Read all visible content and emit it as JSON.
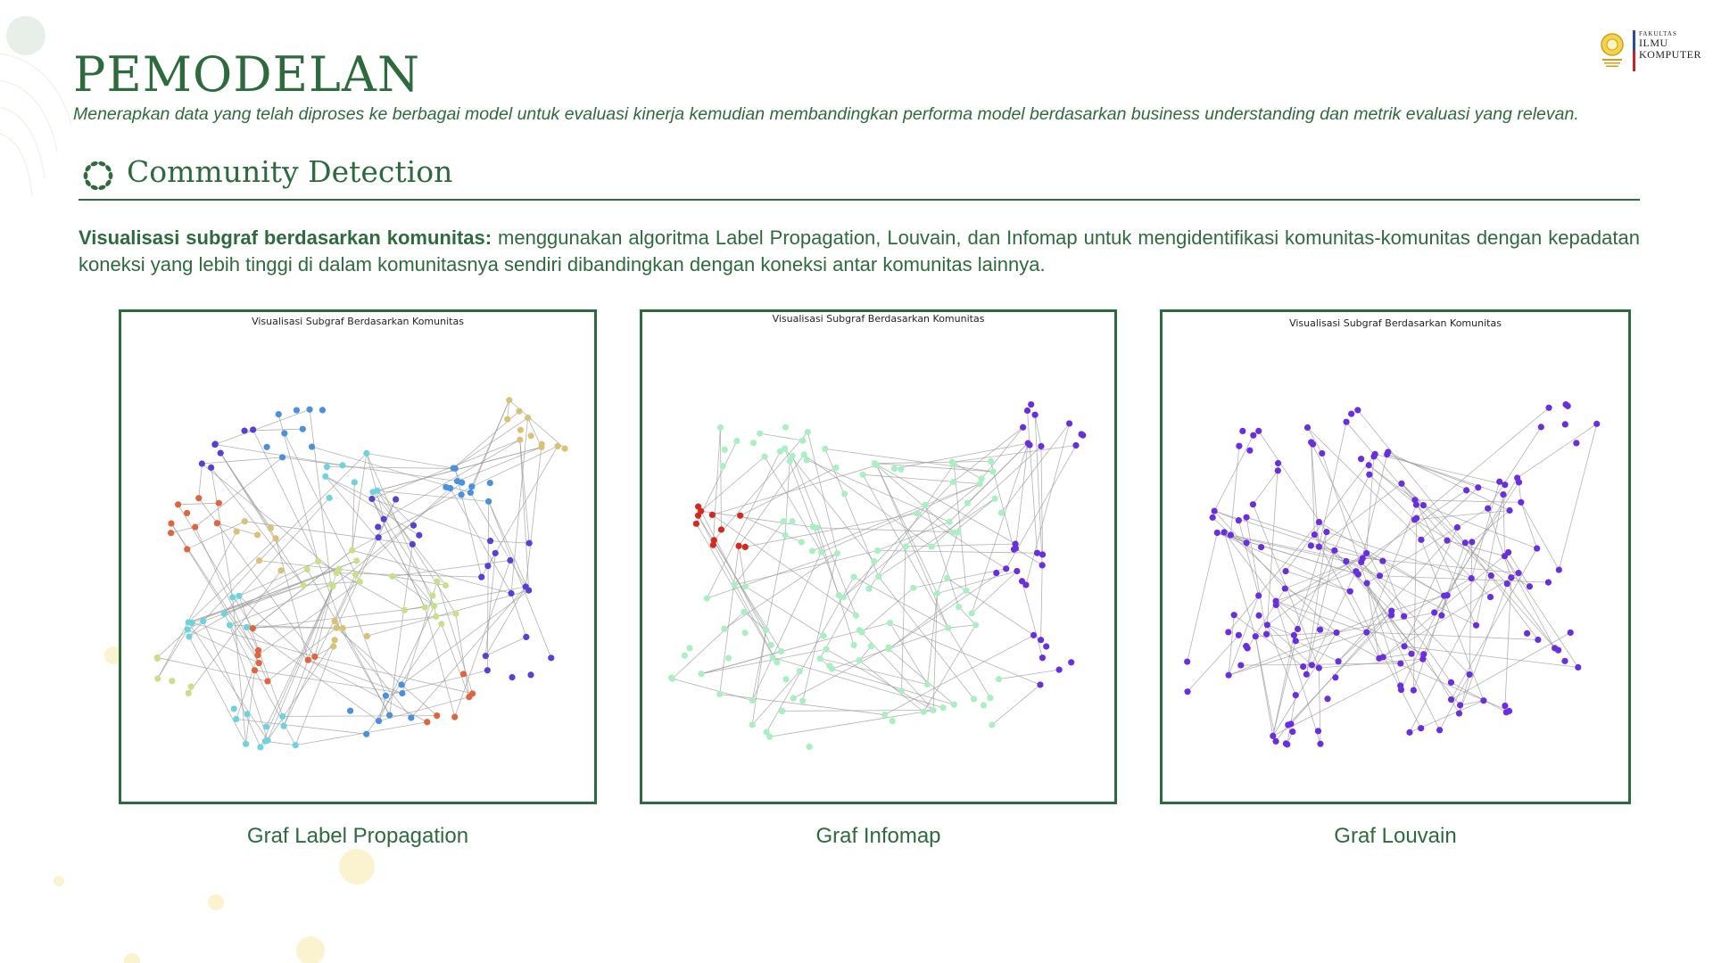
{
  "header": {
    "title": "PEMODELAN",
    "subtitle": "Menerapkan data yang telah diproses ke berbagai model untuk evaluasi kinerja kemudian membandingkan performa model berdasarkan business understanding dan metrik evaluasi yang relevan."
  },
  "logo": {
    "line1": "FAKULTAS",
    "line2": "ILMU",
    "line3": "KOMPUTER"
  },
  "section": {
    "title": "Community Detection",
    "icon": "community-ring-icon"
  },
  "description": {
    "lead": "Visualisasi subgraf berdasarkan komunitas:",
    "body": " menggunakan algoritma Label Propagation, Louvain, dan Infomap untuk mengidentifikasi komunitas-komunitas dengan kepadatan koneksi yang lebih tinggi di dalam komunitasnya sendiri dibandingkan dengan koneksi antar komunitas lainnya."
  },
  "panels": [
    {
      "title": "Visualisasi Subgraf Berdasarkan Komunitas",
      "caption": "Graf Label Propagation",
      "palette": [
        "#5a3fd6",
        "#4a90e0",
        "#6ed3de",
        "#e0643c",
        "#d8c27a",
        "#c8e08a"
      ]
    },
    {
      "title": "Visualisasi Subgraf Berdasarkan Komunitas",
      "caption": "Graf Infomap",
      "palette": [
        "#a8f0bf",
        "#6a2ee0",
        "#d42a1e"
      ]
    },
    {
      "title": "Visualisasi Subgraf Berdasarkan Komunitas",
      "caption": "Graf Louvain",
      "palette": [
        "#6a2ee0"
      ]
    }
  ],
  "colors": {
    "accent": "#2e6b3c",
    "edge": "#9a9a9a"
  }
}
